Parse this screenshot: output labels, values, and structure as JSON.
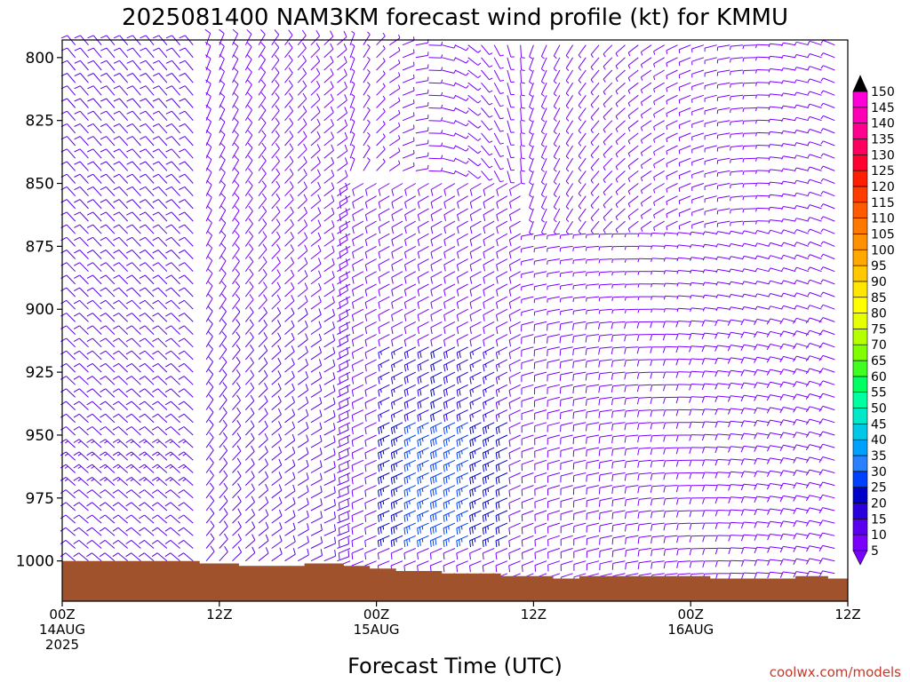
{
  "chart_data": {
    "type": "wind-barb-profile",
    "title": "2025081400 NAM3KM forecast wind profile (kt) for KMMU",
    "xlabel": "Forecast Time (UTC)",
    "credit": "coolwx.com/models",
    "y_reversed": true,
    "y_ticks": [
      800,
      825,
      850,
      875,
      900,
      925,
      950,
      975,
      1000
    ],
    "ylim": [
      1016,
      793
    ],
    "xlim": [
      0,
      60
    ],
    "x_ticks": [
      {
        "hour": 0,
        "labels": [
          "00Z",
          "14AUG",
          "2025"
        ]
      },
      {
        "hour": 12,
        "labels": [
          "12Z"
        ]
      },
      {
        "hour": 24,
        "labels": [
          "00Z",
          "15AUG"
        ]
      },
      {
        "hour": 36,
        "labels": [
          "12Z"
        ]
      },
      {
        "hour": 48,
        "labels": [
          "00Z",
          "16AUG"
        ]
      },
      {
        "hour": 60,
        "labels": [
          "12Z"
        ]
      }
    ],
    "levels_hpa": [
      795,
      800,
      805,
      810,
      815,
      820,
      825,
      830,
      835,
      840,
      845,
      850,
      855,
      860,
      865,
      870,
      875,
      880,
      885,
      890,
      895,
      900,
      905,
      910,
      915,
      920,
      925,
      930,
      935,
      940,
      945,
      950,
      955,
      960,
      965,
      970,
      975,
      980,
      985,
      990,
      995,
      1000,
      1005
    ],
    "hours": [
      0,
      1,
      2,
      3,
      4,
      5,
      6,
      7,
      8,
      9,
      10,
      11,
      12,
      13,
      14,
      15,
      16,
      17,
      18,
      19,
      20,
      21,
      22,
      23,
      24,
      25,
      26,
      27,
      28,
      29,
      30,
      31,
      32,
      33,
      34,
      35,
      36,
      37,
      38,
      39,
      40,
      41,
      42,
      43,
      44,
      45,
      46,
      47,
      48,
      49,
      50,
      51,
      52,
      53,
      54,
      55,
      56,
      57,
      58,
      59,
      60
    ],
    "surface_pressure": [
      {
        "hour": 0,
        "hpa": 1000
      },
      {
        "hour": 10.5,
        "hpa": 1000
      },
      {
        "hour": 10.5,
        "hpa": 1001
      },
      {
        "hour": 13.5,
        "hpa": 1001
      },
      {
        "hour": 13.5,
        "hpa": 1002
      },
      {
        "hour": 18.5,
        "hpa": 1002
      },
      {
        "hour": 18.5,
        "hpa": 1001
      },
      {
        "hour": 21.5,
        "hpa": 1001
      },
      {
        "hour": 21.5,
        "hpa": 1002
      },
      {
        "hour": 23.5,
        "hpa": 1002
      },
      {
        "hour": 23.5,
        "hpa": 1003
      },
      {
        "hour": 25.5,
        "hpa": 1003
      },
      {
        "hour": 25.5,
        "hpa": 1004
      },
      {
        "hour": 29,
        "hpa": 1004
      },
      {
        "hour": 29,
        "hpa": 1005
      },
      {
        "hour": 33.5,
        "hpa": 1005
      },
      {
        "hour": 33.5,
        "hpa": 1006
      },
      {
        "hour": 37.5,
        "hpa": 1006
      },
      {
        "hour": 37.5,
        "hpa": 1007
      },
      {
        "hour": 39.5,
        "hpa": 1007
      },
      {
        "hour": 39.5,
        "hpa": 1006
      },
      {
        "hour": 49.5,
        "hpa": 1006
      },
      {
        "hour": 49.5,
        "hpa": 1007
      },
      {
        "hour": 56,
        "hpa": 1007
      },
      {
        "hour": 56,
        "hpa": 1006
      },
      {
        "hour": 58.5,
        "hpa": 1006
      },
      {
        "hour": 58.5,
        "hpa": 1007
      },
      {
        "hour": 60,
        "hpa": 1007
      }
    ],
    "colorbar": {
      "ticks": [
        5,
        10,
        15,
        20,
        25,
        30,
        35,
        40,
        45,
        50,
        55,
        60,
        65,
        70,
        75,
        80,
        85,
        90,
        95,
        100,
        105,
        110,
        115,
        120,
        125,
        130,
        135,
        140,
        145,
        150
      ],
      "colors": [
        "#7a00ff",
        "#5a00ee",
        "#2a00dd",
        "#0000c8",
        "#0040ff",
        "#2a80ff",
        "#00a0ff",
        "#00c8e6",
        "#00e8c8",
        "#00ffa0",
        "#00ff60",
        "#40ff20",
        "#80ff00",
        "#b4ff00",
        "#e6ff00",
        "#ffff00",
        "#ffe600",
        "#ffc800",
        "#ffa800",
        "#ff9000",
        "#ff7800",
        "#ff5a00",
        "#ff3c00",
        "#ff1e00",
        "#ff0030",
        "#ff0060",
        "#ff0090",
        "#ff00b4",
        "#ff00d8",
        "#ff00ff"
      ],
      "under": "#7a00ff",
      "over": "#000000"
    },
    "surface_color": "#a0522d"
  }
}
